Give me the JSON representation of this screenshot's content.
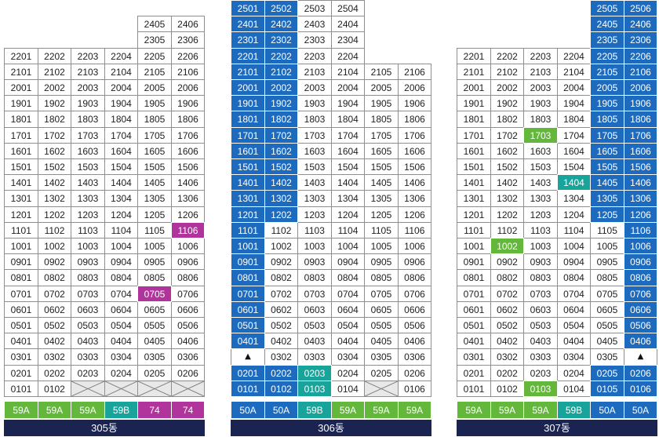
{
  "types": {
    "59A": "#63b73a",
    "59B": "#18a49b",
    "74": "#b1339c",
    "50A": "#1c6bbf"
  },
  "colors": {
    "building_bar": "#1b2350",
    "crossed_fill": "#e8e8e8",
    "cross_line": "#7d7d7d"
  },
  "buildings": [
    {
      "name": "305동",
      "column_types": [
        "59A",
        "59A",
        "59A",
        "59B",
        "74",
        "74"
      ],
      "rows": [
        [
          null,
          null,
          null,
          null,
          null,
          null
        ],
        [
          null,
          null,
          null,
          null,
          "2405",
          "2406"
        ],
        [
          null,
          null,
          null,
          null,
          "2305",
          "2306"
        ],
        [
          "2201",
          "2202",
          "2203",
          "2204",
          "2205",
          "2206"
        ],
        [
          "2101",
          "2102",
          "2103",
          "2104",
          "2105",
          "2106"
        ],
        [
          "2001",
          "2002",
          "2003",
          "2004",
          "2005",
          "2006"
        ],
        [
          "1901",
          "1902",
          "1903",
          "1904",
          "1905",
          "1906"
        ],
        [
          "1801",
          "1802",
          "1803",
          "1804",
          "1805",
          "1806"
        ],
        [
          "1701",
          "1702",
          "1703",
          "1704",
          "1705",
          "1706"
        ],
        [
          "1601",
          "1602",
          "1603",
          "1604",
          "1605",
          "1606"
        ],
        [
          "1501",
          "1502",
          "1503",
          "1504",
          "1505",
          "1506"
        ],
        [
          "1401",
          "1402",
          "1403",
          "1404",
          "1405",
          "1406"
        ],
        [
          "1301",
          "1302",
          "1303",
          "1304",
          "1305",
          "1306"
        ],
        [
          "1201",
          "1202",
          "1203",
          "1204",
          "1205",
          "1206"
        ],
        [
          "1101",
          "1102",
          "1103",
          "1104",
          "1105",
          {
            "unit": "1106",
            "filled": true
          }
        ],
        [
          "1001",
          "1002",
          "1003",
          "1004",
          "1005",
          "1006"
        ],
        [
          "0901",
          "0902",
          "0903",
          "0904",
          "0905",
          "0906"
        ],
        [
          "0801",
          "0802",
          "0803",
          "0804",
          "0805",
          "0806"
        ],
        [
          "0701",
          "0702",
          "0703",
          "0704",
          {
            "unit": "0705",
            "filled": true
          },
          "0706"
        ],
        [
          "0601",
          "0602",
          "0603",
          "0604",
          "0605",
          "0606"
        ],
        [
          "0501",
          "0502",
          "0503",
          "0504",
          "0505",
          "0506"
        ],
        [
          "0401",
          "0402",
          "0403",
          "0404",
          "0405",
          "0406"
        ],
        [
          "0301",
          "0302",
          "0303",
          "0304",
          "0305",
          "0306"
        ],
        [
          "0201",
          "0202",
          "0203",
          "0204",
          "0205",
          "0206"
        ],
        [
          "0101",
          "0102",
          {
            "crossed": true
          },
          {
            "crossed": true
          },
          {
            "crossed": true
          },
          {
            "crossed": true
          }
        ]
      ]
    },
    {
      "name": "306동",
      "column_types": [
        "50A",
        "50A",
        "59B",
        "59A",
        "59A",
        "59A"
      ],
      "rows": [
        [
          {
            "unit": "2501",
            "filled": true
          },
          {
            "unit": "2502",
            "filled": true
          },
          "2503",
          "2504",
          null,
          null
        ],
        [
          {
            "unit": "2401",
            "filled": true
          },
          {
            "unit": "2402",
            "filled": true
          },
          "2403",
          "2404",
          null,
          null
        ],
        [
          {
            "unit": "2301",
            "filled": true
          },
          {
            "unit": "2302",
            "filled": true
          },
          "2303",
          "2304",
          null,
          null
        ],
        [
          {
            "unit": "2201",
            "filled": true
          },
          {
            "unit": "2202",
            "filled": true
          },
          "2203",
          "2204",
          null,
          null
        ],
        [
          {
            "unit": "2101",
            "filled": true
          },
          {
            "unit": "2102",
            "filled": true
          },
          "2103",
          "2104",
          "2105",
          "2106"
        ],
        [
          {
            "unit": "2001",
            "filled": true
          },
          {
            "unit": "2002",
            "filled": true
          },
          "2003",
          "2004",
          "2005",
          "2006"
        ],
        [
          {
            "unit": "1901",
            "filled": true
          },
          {
            "unit": "1902",
            "filled": true
          },
          "1903",
          "1904",
          "1905",
          "1906"
        ],
        [
          {
            "unit": "1801",
            "filled": true
          },
          {
            "unit": "1802",
            "filled": true
          },
          "1803",
          "1804",
          "1805",
          "1806"
        ],
        [
          {
            "unit": "1701",
            "filled": true
          },
          {
            "unit": "1702",
            "filled": true
          },
          "1703",
          "1704",
          "1705",
          "1706"
        ],
        [
          {
            "unit": "1601",
            "filled": true
          },
          {
            "unit": "1602",
            "filled": true
          },
          "1603",
          "1604",
          "1605",
          "1606"
        ],
        [
          {
            "unit": "1501",
            "filled": true
          },
          {
            "unit": "1502",
            "filled": true
          },
          "1503",
          "1504",
          "1505",
          "1506"
        ],
        [
          {
            "unit": "1401",
            "filled": true
          },
          {
            "unit": "1402",
            "filled": true
          },
          "1403",
          "1404",
          "1405",
          "1406"
        ],
        [
          {
            "unit": "1301",
            "filled": true
          },
          {
            "unit": "1302",
            "filled": true
          },
          "1303",
          "1304",
          "1305",
          "1306"
        ],
        [
          {
            "unit": "1201",
            "filled": true
          },
          {
            "unit": "1202",
            "filled": true
          },
          "1203",
          "1204",
          "1205",
          "1206"
        ],
        [
          {
            "unit": "1101",
            "filled": true
          },
          "1102",
          "1103",
          "1104",
          "1105",
          "1106"
        ],
        [
          {
            "unit": "1001",
            "filled": true
          },
          "1002",
          "1003",
          "1004",
          "1005",
          "1006"
        ],
        [
          {
            "unit": "0901",
            "filled": true
          },
          "0902",
          "0903",
          "0904",
          "0905",
          "0906"
        ],
        [
          {
            "unit": "0801",
            "filled": true
          },
          "0802",
          "0803",
          "0804",
          "0805",
          "0806"
        ],
        [
          {
            "unit": "0701",
            "filled": true
          },
          "0702",
          "0703",
          "0704",
          "0705",
          "0706"
        ],
        [
          {
            "unit": "0601",
            "filled": true
          },
          "0602",
          "0603",
          "0604",
          "0605",
          "0606"
        ],
        [
          {
            "unit": "0501",
            "filled": true
          },
          "0502",
          "0503",
          "0504",
          "0505",
          "0506"
        ],
        [
          {
            "unit": "0401",
            "filled": true
          },
          "0402",
          "0403",
          "0404",
          "0405",
          "0406"
        ],
        [
          "▲",
          "0302",
          "0303",
          "0304",
          "0305",
          "0306"
        ],
        [
          {
            "unit": "0201",
            "filled": true
          },
          {
            "unit": "0202",
            "filled": true
          },
          {
            "unit": "0203",
            "filled": true
          },
          "0204",
          "0205",
          "0206"
        ],
        [
          {
            "unit": "0101",
            "filled": true
          },
          {
            "unit": "0102",
            "filled": true
          },
          {
            "unit": "0103",
            "filled": true
          },
          "0104",
          {
            "crossed": true
          },
          "0106"
        ]
      ]
    },
    {
      "name": "307동",
      "column_types": [
        "59A",
        "59A",
        "59A",
        "59B",
        "50A",
        "50A"
      ],
      "rows": [
        [
          null,
          null,
          null,
          null,
          {
            "unit": "2505",
            "filled": true
          },
          {
            "unit": "2506",
            "filled": true
          }
        ],
        [
          null,
          null,
          null,
          null,
          {
            "unit": "2405",
            "filled": true
          },
          {
            "unit": "2406",
            "filled": true
          }
        ],
        [
          null,
          null,
          null,
          null,
          {
            "unit": "2305",
            "filled": true
          },
          {
            "unit": "2306",
            "filled": true
          }
        ],
        [
          "2201",
          "2202",
          "2203",
          "2204",
          {
            "unit": "2205",
            "filled": true
          },
          {
            "unit": "2206",
            "filled": true
          }
        ],
        [
          "2101",
          "2102",
          "2103",
          "2104",
          {
            "unit": "2105",
            "filled": true
          },
          {
            "unit": "2106",
            "filled": true
          }
        ],
        [
          "2001",
          "2002",
          "2003",
          "2004",
          {
            "unit": "2005",
            "filled": true
          },
          {
            "unit": "2006",
            "filled": true
          }
        ],
        [
          "1901",
          "1902",
          "1903",
          "1904",
          {
            "unit": "1905",
            "filled": true
          },
          {
            "unit": "1906",
            "filled": true
          }
        ],
        [
          "1801",
          "1802",
          "1803",
          "1804",
          {
            "unit": "1805",
            "filled": true
          },
          {
            "unit": "1806",
            "filled": true
          }
        ],
        [
          "1701",
          "1702",
          {
            "unit": "1703",
            "filled": true
          },
          "1704",
          {
            "unit": "1705",
            "filled": true
          },
          {
            "unit": "1706",
            "filled": true
          }
        ],
        [
          "1601",
          "1602",
          "1603",
          "1604",
          {
            "unit": "1605",
            "filled": true
          },
          {
            "unit": "1606",
            "filled": true
          }
        ],
        [
          "1501",
          "1502",
          "1503",
          "1504",
          {
            "unit": "1505",
            "filled": true
          },
          {
            "unit": "1506",
            "filled": true
          }
        ],
        [
          "1401",
          "1402",
          "1403",
          {
            "unit": "1404",
            "filled": true
          },
          {
            "unit": "1405",
            "filled": true
          },
          {
            "unit": "1406",
            "filled": true
          }
        ],
        [
          "1301",
          "1302",
          "1303",
          "1304",
          {
            "unit": "1305",
            "filled": true
          },
          {
            "unit": "1306",
            "filled": true
          }
        ],
        [
          "1201",
          "1202",
          "1203",
          "1204",
          {
            "unit": "1205",
            "filled": true
          },
          {
            "unit": "1206",
            "filled": true
          }
        ],
        [
          "1101",
          "1102",
          "1103",
          "1104",
          "1105",
          {
            "unit": "1106",
            "filled": true
          }
        ],
        [
          "1001",
          {
            "unit": "1002",
            "filled": true
          },
          "1003",
          "1004",
          "1005",
          {
            "unit": "1006",
            "filled": true
          }
        ],
        [
          "0901",
          "0902",
          "0903",
          "0904",
          "0905",
          {
            "unit": "0906",
            "filled": true
          }
        ],
        [
          "0801",
          "0802",
          "0803",
          "0804",
          "0805",
          {
            "unit": "0806",
            "filled": true
          }
        ],
        [
          "0701",
          "0702",
          "0703",
          "0704",
          "0705",
          {
            "unit": "0706",
            "filled": true
          }
        ],
        [
          "0601",
          "0602",
          "0603",
          "0604",
          "0605",
          {
            "unit": "0606",
            "filled": true
          }
        ],
        [
          "0501",
          "0502",
          "0503",
          "0504",
          "0505",
          {
            "unit": "0506",
            "filled": true
          }
        ],
        [
          "0401",
          "0402",
          "0403",
          "0404",
          "0405",
          {
            "unit": "0406",
            "filled": true
          }
        ],
        [
          "0301",
          "0302",
          "0303",
          "0304",
          "0305",
          "▲"
        ],
        [
          "0201",
          "0202",
          "0203",
          "0204",
          {
            "unit": "0205",
            "filled": true
          },
          {
            "unit": "0206",
            "filled": true
          }
        ],
        [
          "0101",
          "0102",
          {
            "unit": "0103",
            "filled": true
          },
          "0104",
          {
            "unit": "0105",
            "filled": true
          },
          {
            "unit": "0106",
            "filled": true
          }
        ]
      ]
    }
  ]
}
